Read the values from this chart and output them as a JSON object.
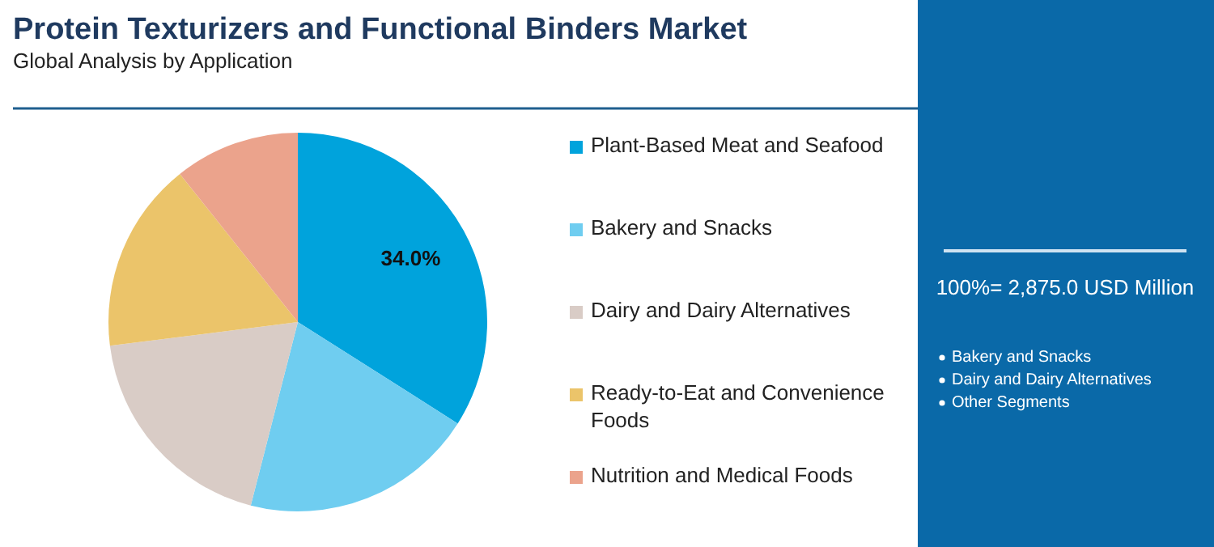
{
  "chart_data": {
    "type": "pie",
    "title": "Protein Texturizers and Functional Binders Market",
    "subtitle": "Global Analysis by Application",
    "categories": [
      "Plant-Based Meat and Seafood",
      "Bakery and Snacks",
      "Dairy and Dairy Alternatives",
      "Ready-to-Eat and Convenience Foods",
      "Nutrition and Medical Foods"
    ],
    "values": [
      34,
      20,
      19,
      16.3,
      10.7
    ],
    "colors": [
      "#00a3dc",
      "#6fcdf0",
      "#d9ccc6",
      "#ebc46a",
      "#eba38c"
    ],
    "value_labels": [
      "34.0%",
      null,
      null,
      null,
      null
    ],
    "legend": "right",
    "annotations": [
      "100%= 2,875.0 USD Million",
      "Bakery and Snacks",
      "Dairy and Dairy Alternatives",
      "Other Segments"
    ]
  }
}
